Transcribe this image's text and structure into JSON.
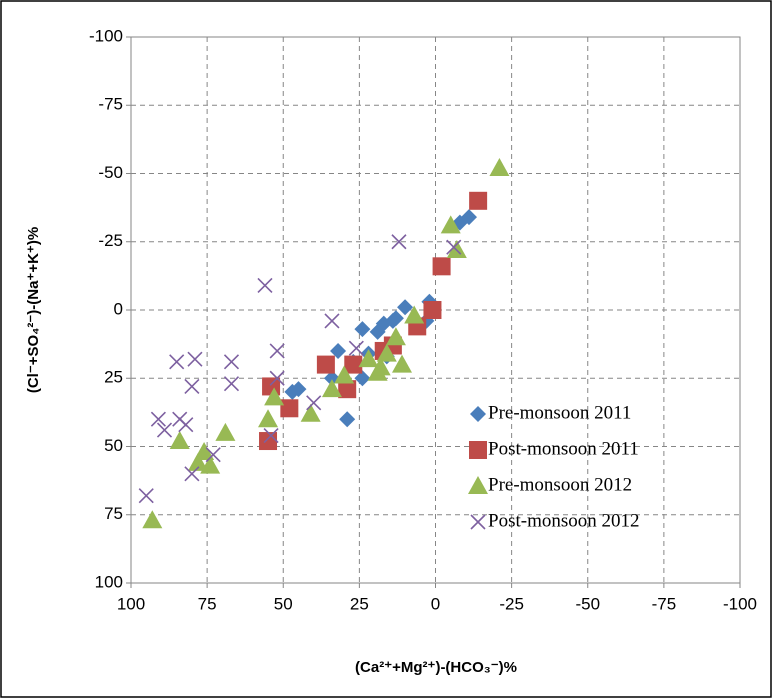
{
  "chart_data": {
    "type": "scatter",
    "x_label": "(Ca²⁺+Mg²⁺)-(HCO₃⁻)%",
    "y_label": "(Cl⁻+SO₄²⁻)-(Na⁺+K⁺)%",
    "xlim": [
      100,
      -100
    ],
    "xticks": [
      100,
      75,
      50,
      25,
      0,
      -25,
      -50,
      -75,
      -100
    ],
    "ylim": [
      100,
      -100
    ],
    "yticks": [
      -100,
      -75,
      -50,
      -25,
      0,
      25,
      50,
      75,
      100
    ],
    "grid": true,
    "legend_position": "right",
    "series": [
      {
        "name": "Pre-monsoon 2011",
        "color": "#4a7ebb",
        "marker": "diamond",
        "x": [
          -11,
          -8,
          2,
          3,
          10,
          13,
          14,
          17,
          19,
          24,
          22,
          27,
          32,
          34,
          29,
          45,
          47,
          16,
          24
        ],
        "values": [
          -34,
          -32,
          -3,
          4,
          -1,
          3,
          4,
          5,
          8,
          7,
          16,
          19,
          15,
          25,
          40,
          29,
          30,
          17,
          25
        ]
      },
      {
        "name": "Post-monsoon 2011",
        "color": "#be4b48",
        "marker": "square",
        "x": [
          -14,
          -2,
          1,
          6,
          14,
          17,
          27,
          29,
          36,
          48,
          54,
          55
        ],
        "values": [
          -40,
          -16,
          0,
          6,
          13,
          15,
          20,
          29,
          20,
          36,
          28,
          48
        ]
      },
      {
        "name": "Pre-monsoon 2012",
        "color": "#98b954",
        "marker": "triangle",
        "x": [
          -21,
          -5,
          -7,
          7,
          13,
          11,
          16,
          19,
          18,
          22,
          30,
          34,
          41,
          53,
          55,
          69,
          76,
          78,
          74,
          84,
          93
        ],
        "values": [
          -52,
          -31,
          -22,
          2,
          10,
          20,
          16,
          23,
          21,
          18,
          24,
          29,
          38,
          32,
          40,
          45,
          52,
          56,
          57,
          48,
          77
        ]
      },
      {
        "name": "Post-monsoon 2012",
        "color": "#7d60a0",
        "marker": "cross",
        "x": [
          -6,
          12,
          26,
          34,
          56,
          52,
          52,
          40,
          67,
          67,
          79,
          80,
          85,
          91,
          89,
          82,
          80,
          73,
          95,
          84,
          54
        ],
        "values": [
          -23,
          -25,
          14,
          4,
          -9,
          15,
          25,
          34,
          19,
          27,
          18,
          28,
          19,
          40,
          44,
          42,
          60,
          53,
          68,
          40,
          46
        ]
      }
    ]
  }
}
